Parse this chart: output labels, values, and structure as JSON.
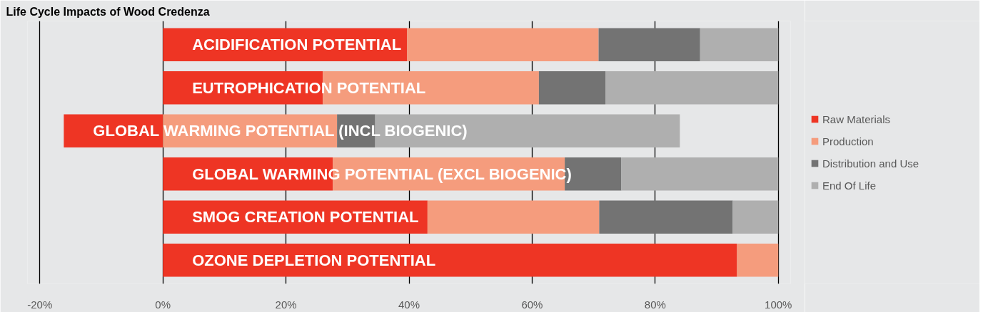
{
  "chart_data": {
    "type": "bar",
    "orientation": "horizontal",
    "stacked": true,
    "title": "Life Cycle Impacts of Wood Credenza",
    "categories": [
      "ACIDIFICATION POTENTIAL",
      "EUTROPHICATION POTENTIAL",
      "GLOBAL WARMING POTENTIAL (INCL BIOGENIC)",
      "GLOBAL WARMING POTENTIAL (EXCL BIOGENIC)",
      "SMOG CREATION POTENTIAL",
      "OZONE DEPLETION POTENTIAL"
    ],
    "series": [
      {
        "name": "Raw Materials",
        "color": "#ee3524",
        "values": [
          39.7,
          26.0,
          -16.1,
          27.6,
          43.0,
          93.3
        ]
      },
      {
        "name": "Production",
        "color": "#f59c7d",
        "values": [
          31.1,
          35.1,
          28.3,
          37.7,
          27.9,
          6.7
        ]
      },
      {
        "name": "Distribution and Use",
        "color": "#737373",
        "values": [
          16.5,
          10.8,
          6.2,
          9.2,
          21.7,
          0
        ]
      },
      {
        "name": "End Of Life",
        "color": "#afafaf",
        "values": [
          12.7,
          28.1,
          49.5,
          25.5,
          7.4,
          0
        ]
      }
    ],
    "xlim": [
      -22,
      102
    ],
    "xticks": [
      {
        "value": -20,
        "label": "-20%"
      },
      {
        "value": 0,
        "label": "0%"
      },
      {
        "value": 20,
        "label": "20%"
      },
      {
        "value": 40,
        "label": "40%"
      },
      {
        "value": 60,
        "label": "60%"
      },
      {
        "value": 80,
        "label": "80%"
      },
      {
        "value": 100,
        "label": "100%"
      }
    ],
    "tick_labels": "x",
    "grid": "x",
    "legend": "right"
  }
}
